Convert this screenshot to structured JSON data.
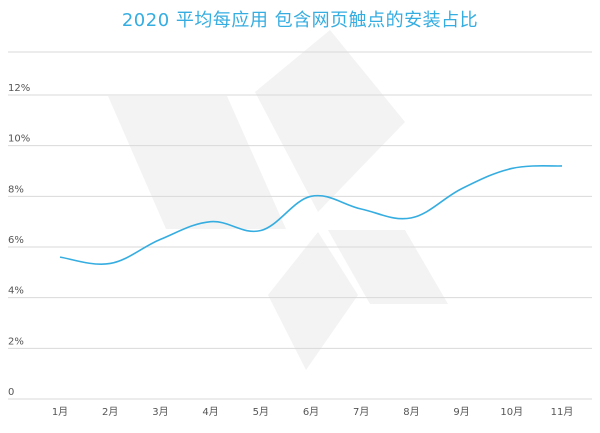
{
  "chart_data": {
    "type": "line",
    "title": "2020 平均每应用 包含网页触点的安装占比",
    "xlabel": "",
    "ylabel": "",
    "categories": [
      "1月",
      "2月",
      "3月",
      "4月",
      "5月",
      "6月",
      "7月",
      "8月",
      "9月",
      "10月",
      "11月"
    ],
    "y_ticks": [
      "0",
      "2%",
      "4%",
      "6%",
      "8%",
      "10%",
      "12%"
    ],
    "y_tick_values": [
      0,
      2,
      4,
      6,
      8,
      10,
      12
    ],
    "ylim": [
      0,
      12
    ],
    "y_unit": "%",
    "grid": true,
    "series": [
      {
        "values": [
          5.6,
          5.35,
          6.3,
          7.0,
          6.65,
          8.0,
          7.5,
          7.15,
          8.3,
          9.1,
          9.2
        ]
      }
    ],
    "colors": {
      "title": "#35ade0",
      "line": "#35ade0",
      "grid": "#d9d9d9",
      "tick_text": "#555555",
      "watermark": "#f3f3f3"
    }
  }
}
